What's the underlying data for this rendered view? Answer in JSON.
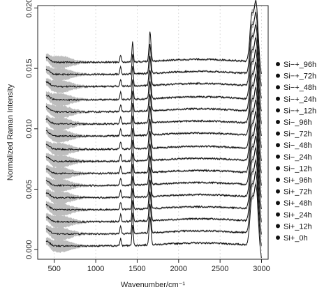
{
  "chart_data": {
    "type": "line",
    "title": "",
    "xlabel": "Wavenumber/cm⁻¹",
    "ylabel": "Normalized Raman Intensity",
    "xlim": [
      300,
      3080
    ],
    "ylim": [
      -0.0008,
      0.0202
    ],
    "x_ticks": [
      500,
      1000,
      1500,
      2000,
      2500,
      3000
    ],
    "y_ticks": [
      0.0,
      0.005,
      0.01,
      0.015,
      0.02
    ],
    "y_tick_labels": [
      "0.000",
      "0.005",
      "0.010",
      "0.015",
      "0.020"
    ],
    "grid": true,
    "legend_position": "right",
    "x_range": [
      400,
      3000
    ],
    "series": [
      {
        "name": "Si+_0h",
        "baseline": 0.0003
      },
      {
        "name": "Si+_12h",
        "baseline": 0.0013
      },
      {
        "name": "Si+_24h",
        "baseline": 0.0023
      },
      {
        "name": "Si+_48h",
        "baseline": 0.0033
      },
      {
        "name": "Si+_72h",
        "baseline": 0.0043
      },
      {
        "name": "Si+_96h",
        "baseline": 0.0053
      },
      {
        "name": "Si−_12h",
        "baseline": 0.0063
      },
      {
        "name": "Si−_24h",
        "baseline": 0.0073
      },
      {
        "name": "Si−_48h",
        "baseline": 0.0083
      },
      {
        "name": "Si−_72h",
        "baseline": 0.0094
      },
      {
        "name": "Si−_96h",
        "baseline": 0.0104
      },
      {
        "name": "Si−+_12h",
        "baseline": 0.0114
      },
      {
        "name": "Si−+_24h",
        "baseline": 0.0124
      },
      {
        "name": "Si−+_48h",
        "baseline": 0.0135
      },
      {
        "name": "Si−+_72h",
        "baseline": 0.0145
      },
      {
        "name": "Si−+_96h",
        "baseline": 0.0155
      }
    ],
    "peaks": [
      {
        "x": 1300,
        "height": 0.0006
      },
      {
        "x": 1445,
        "height": 0.0017
      },
      {
        "x": 1655,
        "height": 0.0024
      },
      {
        "x": 2880,
        "height": 0.003
      },
      {
        "x": 2935,
        "height": 0.004
      }
    ],
    "colors": {
      "line": "#111111",
      "band": "#bdbdbd",
      "grid": "#cccccc"
    }
  }
}
